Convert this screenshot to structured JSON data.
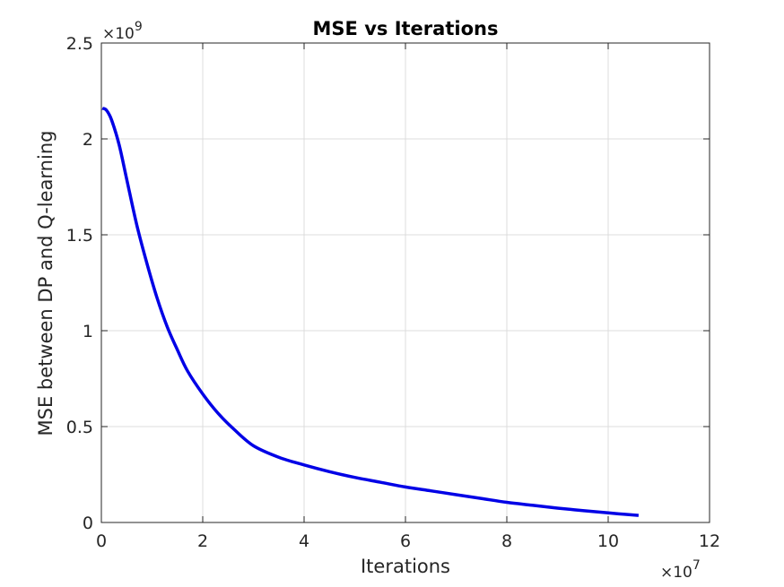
{
  "chart_data": {
    "type": "line",
    "title": "MSE vs Iterations",
    "xlabel": "Iterations",
    "ylabel": "MSE between DP and Q-learning",
    "x_multiplier": {
      "base": "×10",
      "exponent": "7"
    },
    "y_multiplier": {
      "base": "×10",
      "exponent": "9"
    },
    "xlim": [
      0,
      12
    ],
    "ylim": [
      0,
      2.5
    ],
    "xticks": [
      0,
      2,
      4,
      6,
      8,
      10,
      12
    ],
    "yticks": [
      0,
      0.5,
      1,
      1.5,
      2,
      2.5
    ],
    "xtick_labels": [
      "0",
      "2",
      "4",
      "6",
      "8",
      "10",
      "12"
    ],
    "ytick_labels": [
      "0",
      "0.5",
      "1",
      "1.5",
      "2",
      "2.5"
    ],
    "grid": true,
    "series": [
      {
        "color": "#0000e6",
        "x": [
          0.02,
          0.1,
          0.2,
          0.35,
          0.5,
          0.7,
          0.9,
          1.1,
          1.3,
          1.5,
          1.7,
          2.0,
          2.3,
          2.6,
          3.0,
          3.5,
          4.0,
          4.5,
          5.0,
          5.5,
          6.0,
          6.5,
          7.0,
          7.5,
          8.0,
          8.5,
          9.0,
          9.5,
          10.0,
          10.3,
          10.6
        ],
        "y": [
          2.16,
          2.15,
          2.1,
          1.97,
          1.79,
          1.55,
          1.35,
          1.17,
          1.02,
          0.9,
          0.79,
          0.67,
          0.57,
          0.49,
          0.4,
          0.34,
          0.3,
          0.265,
          0.235,
          0.21,
          0.185,
          0.165,
          0.145,
          0.125,
          0.105,
          0.09,
          0.075,
          0.062,
          0.05,
          0.043,
          0.037
        ]
      }
    ]
  }
}
